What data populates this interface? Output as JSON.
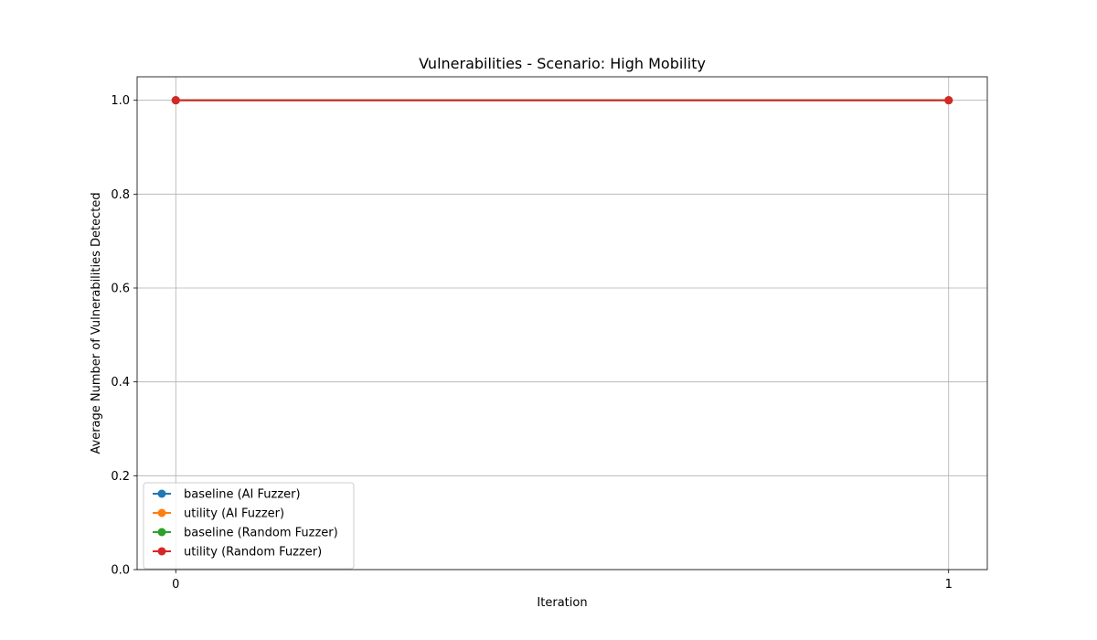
{
  "chart_data": {
    "type": "line",
    "title": "Vulnerabilities - Scenario: High Mobility",
    "xlabel": "Iteration",
    "ylabel": "Average Number of Vulnerabilities Detected",
    "x": [
      0,
      1
    ],
    "xticks": [
      0,
      1
    ],
    "xtick_labels": [
      "0",
      "1"
    ],
    "xlim": [
      -0.05,
      1.05
    ],
    "ylim": [
      0.0,
      1.05
    ],
    "yticks": [
      0.0,
      0.2,
      0.4,
      0.6,
      0.8,
      1.0
    ],
    "ytick_labels": [
      "0.0",
      "0.2",
      "0.4",
      "0.6",
      "0.8",
      "1.0"
    ],
    "grid": true,
    "legend_position": "lower-left",
    "series": [
      {
        "name": "baseline (AI Fuzzer)",
        "values": [
          1.0,
          1.0
        ],
        "color": "#1f77b4",
        "marker": "circle"
      },
      {
        "name": "utility (AI Fuzzer)",
        "values": [
          1.0,
          1.0
        ],
        "color": "#ff7f0e",
        "marker": "circle"
      },
      {
        "name": "baseline (Random Fuzzer)",
        "values": [
          1.0,
          1.0
        ],
        "color": "#2ca02c",
        "marker": "circle"
      },
      {
        "name": "utility (Random Fuzzer)",
        "values": [
          1.0,
          1.0
        ],
        "color": "#d62728",
        "marker": "circle"
      }
    ]
  }
}
